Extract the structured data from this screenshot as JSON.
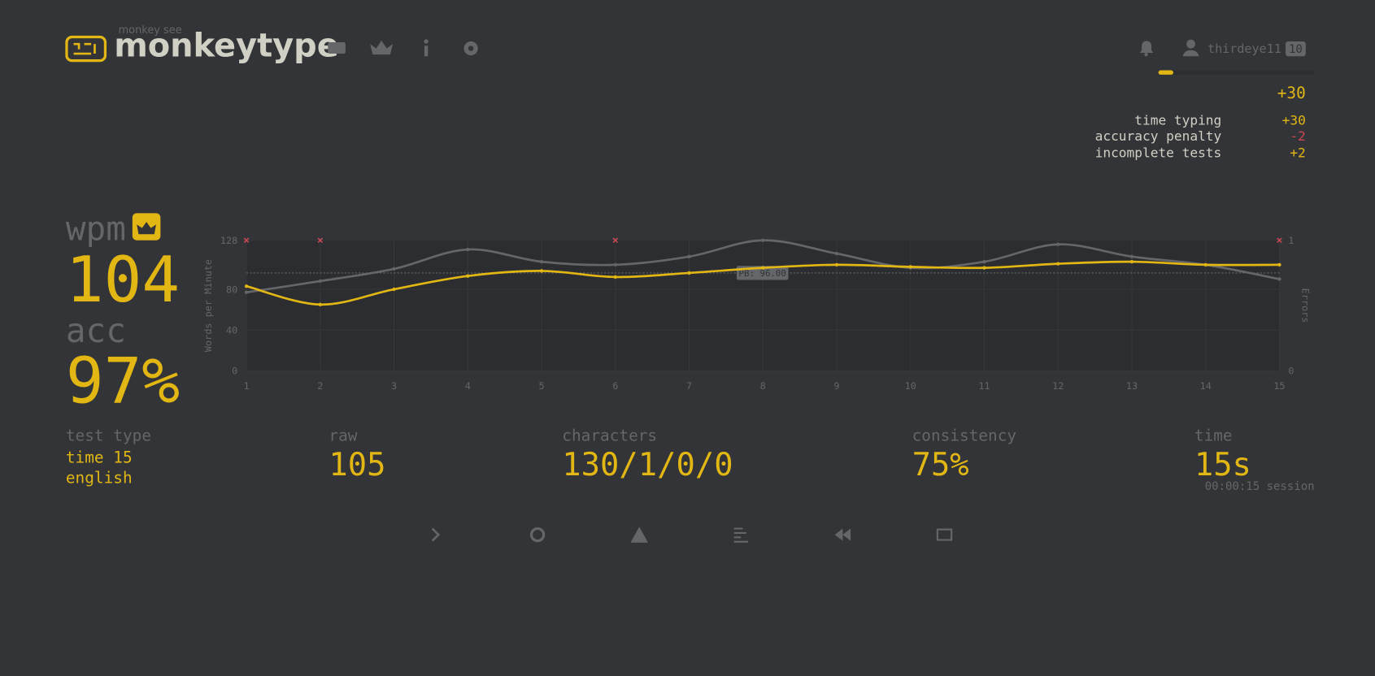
{
  "header": {
    "tagline": "monkey see",
    "title": "monkeytype",
    "user": "thirdeye11",
    "level": "10"
  },
  "xp": {
    "total": "+30",
    "breakdown": [
      {
        "label": "time typing",
        "value": "+30"
      },
      {
        "label": "accuracy penalty",
        "value": "-2"
      },
      {
        "label": "incomplete tests",
        "value": "+2"
      }
    ]
  },
  "stats": {
    "wpm": {
      "label": "wpm",
      "value": "104"
    },
    "acc": {
      "label": "acc",
      "value": "97%"
    },
    "test_type": {
      "label": "test type",
      "lines": [
        "time 15",
        "english"
      ]
    },
    "raw": {
      "label": "raw",
      "value": "105"
    },
    "characters": {
      "label": "characters",
      "value": "130/1/0/0"
    },
    "consistency": {
      "label": "consistency",
      "value": "75%"
    },
    "time": {
      "label": "time",
      "value": "15s",
      "session": "00:00:15 session"
    }
  },
  "chart_data": {
    "type": "line",
    "y_label": "Words per Minute",
    "y2_label": "Errors",
    "x": [
      1,
      2,
      3,
      4,
      5,
      6,
      7,
      8,
      9,
      10,
      11,
      12,
      13,
      14,
      15
    ],
    "xlim": [
      1,
      15
    ],
    "xticks": [
      1,
      2,
      3,
      4,
      5,
      6,
      7,
      8,
      9,
      10,
      11,
      12,
      13,
      14,
      15
    ],
    "ylim": [
      0,
      128
    ],
    "yticks": [
      0,
      40,
      80,
      128
    ],
    "y2lim": [
      0,
      1
    ],
    "y2ticks": [
      0,
      1
    ],
    "grid": true,
    "series": [
      {
        "name": "raw",
        "color": "#646669",
        "values": [
          77,
          88,
          100,
          119,
          107,
          104,
          112,
          128,
          115,
          101,
          107,
          124,
          112,
          104,
          90
        ]
      },
      {
        "name": "wpm",
        "color": "#e2b714",
        "values": [
          83,
          65,
          80,
          93,
          98,
          92,
          96,
          101,
          104,
          102,
          101,
          105,
          107,
          104,
          104
        ]
      },
      {
        "name": "errors",
        "color": "#ca4754",
        "axis": "y2",
        "marker": "x",
        "values": [
          1,
          1,
          null,
          null,
          null,
          1,
          null,
          null,
          null,
          null,
          null,
          null,
          null,
          null,
          1
        ]
      }
    ],
    "annotations": [
      {
        "label": "PB: 96.00",
        "value": 96
      }
    ]
  }
}
